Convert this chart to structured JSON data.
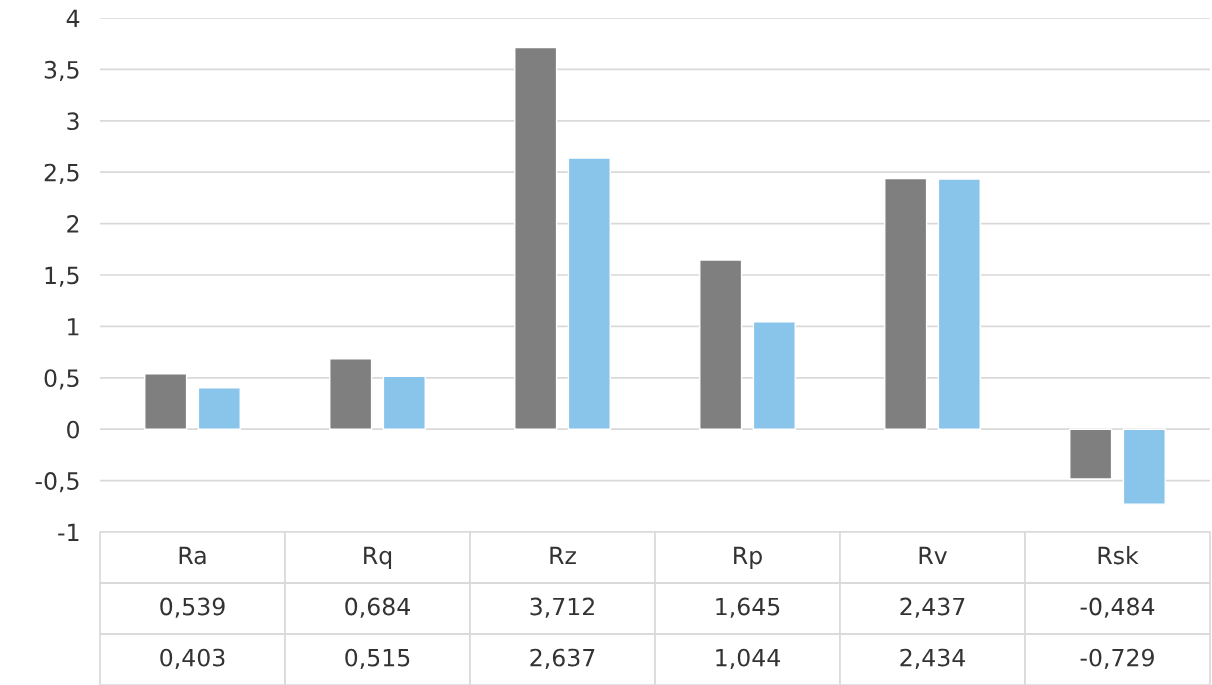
{
  "chart_data": {
    "type": "bar",
    "categories": [
      "Ra",
      "Rq",
      "Rz",
      "Rp",
      "Rv",
      "Rsk"
    ],
    "series": [
      {
        "color": "#7f7f7f",
        "values": [
          0.539,
          0.684,
          3.712,
          1.645,
          2.437,
          -0.484
        ],
        "value_labels": [
          "0,539",
          "0,684",
          "3,712",
          "1,645",
          "2,437",
          "-0,484"
        ]
      },
      {
        "color": "#89c4eb",
        "values": [
          0.403,
          0.515,
          2.637,
          1.044,
          2.434,
          -0.729
        ],
        "value_labels": [
          "0,403",
          "0,515",
          "2,637",
          "1,044",
          "2,434",
          "-0,729"
        ]
      }
    ],
    "ylim": [
      -1,
      4
    ],
    "yticks": [
      -1,
      {
        "value": -0.5,
        "label": "-0,5"
      },
      0,
      {
        "value": 0.5,
        "label": "0,5"
      },
      1,
      {
        "value": 1.5,
        "label": "1,5"
      },
      2,
      {
        "value": 2.5,
        "label": "2,5"
      },
      3,
      {
        "value": 3.5,
        "label": "3,5"
      },
      4
    ],
    "grid": "y",
    "legend": false
  }
}
